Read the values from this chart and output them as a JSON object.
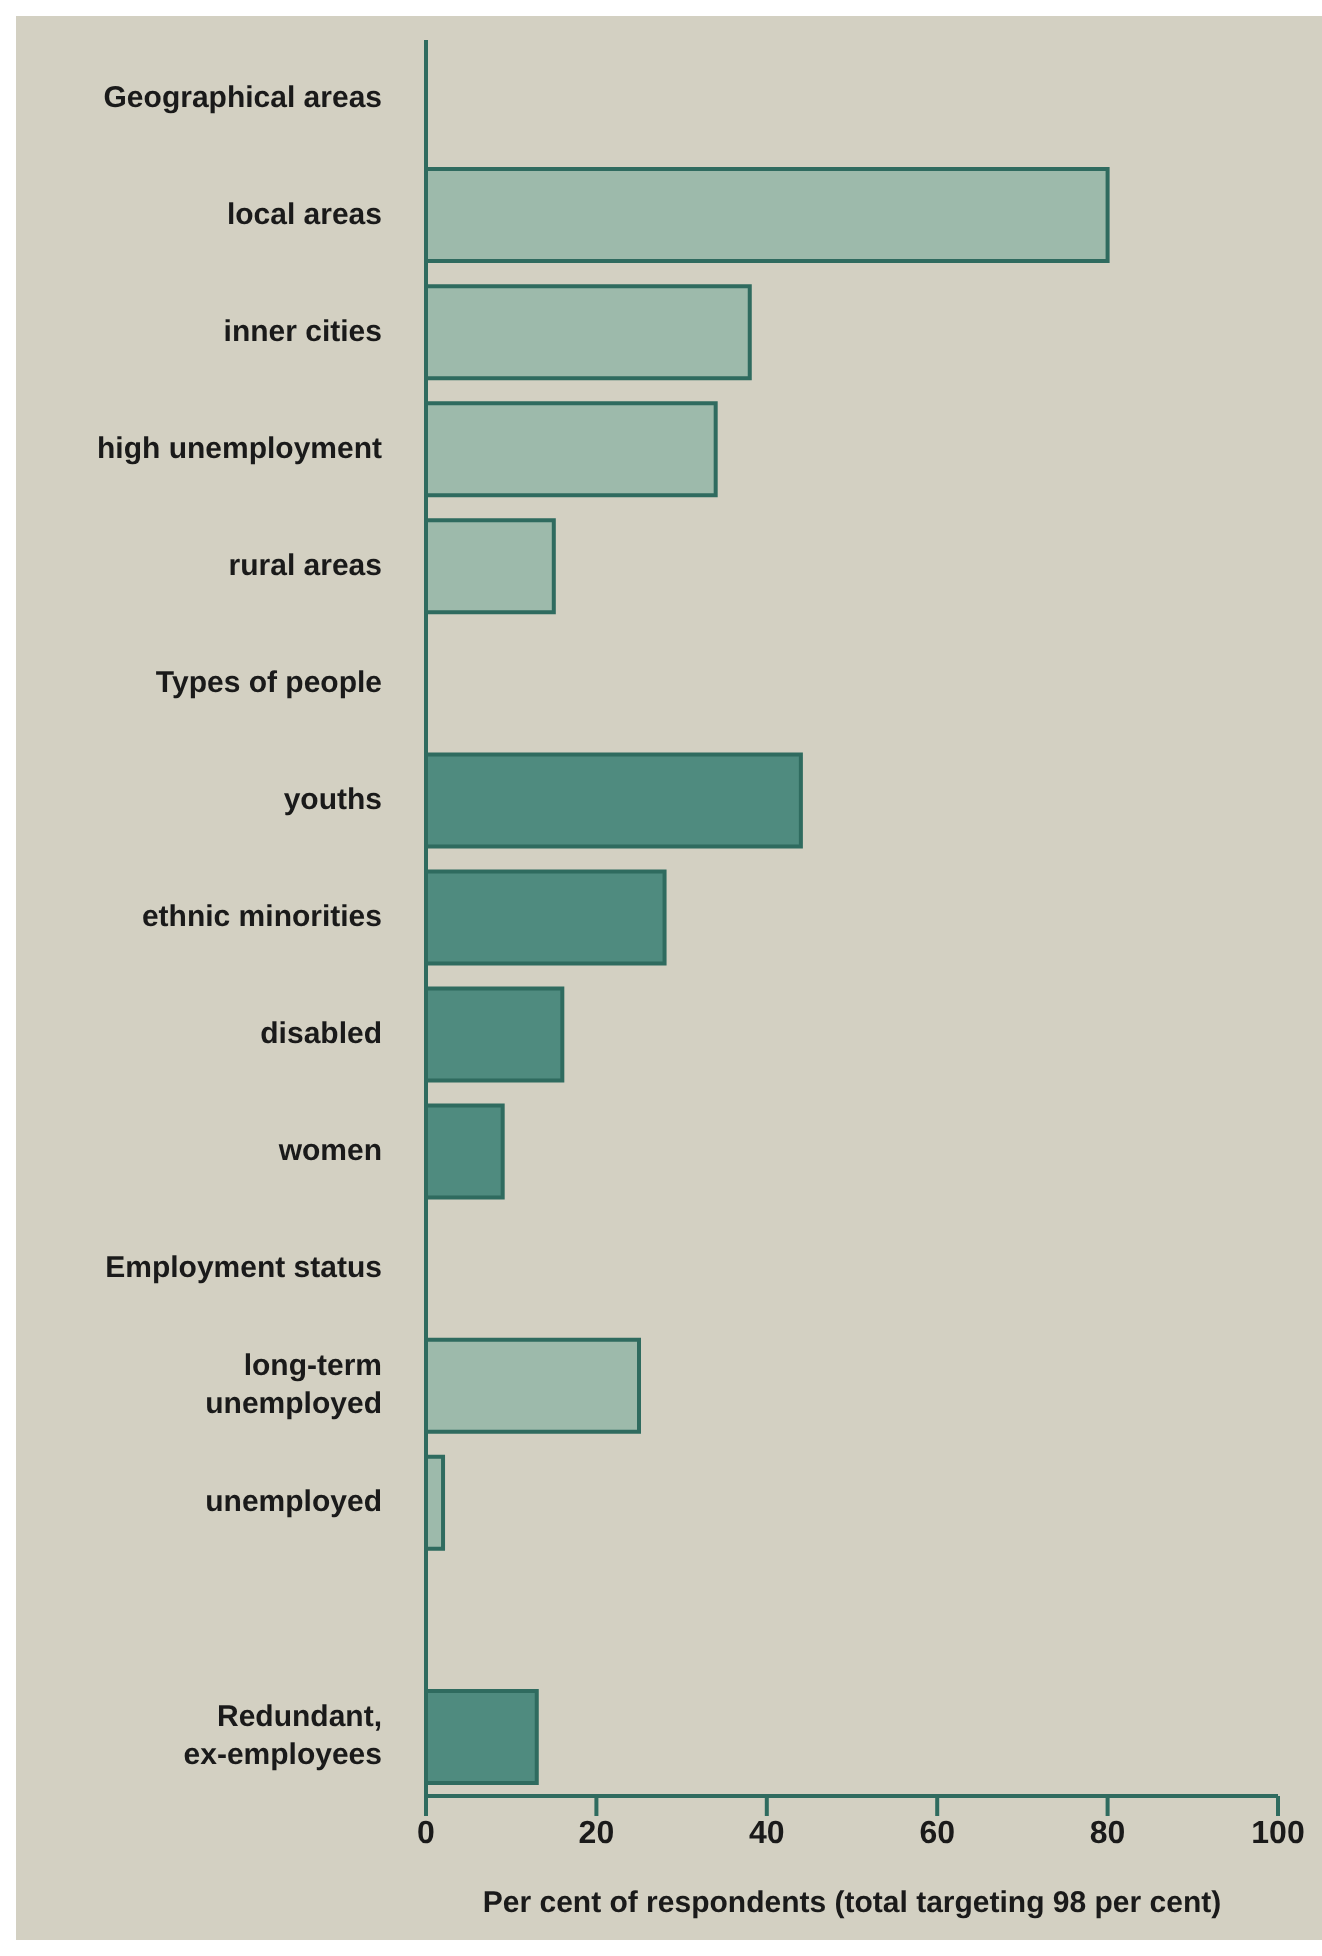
{
  "chart_data": {
    "type": "bar",
    "orientation": "horizontal",
    "xlabel": "Per cent of respondents (total targeting 98 per cent)",
    "categories": [
      "Geographical areas",
      "local areas",
      "inner cities",
      "high unemployment",
      "rural areas",
      "Types of people",
      "youths",
      "ethnic minorities",
      "disabled",
      "women",
      "Employment status",
      "long-term\nunemployed",
      "unemployed",
      null,
      "Redundant,\nex-employees"
    ],
    "values": [
      null,
      80,
      38,
      34,
      15,
      null,
      44,
      28,
      16,
      9,
      null,
      25,
      2,
      null,
      13
    ],
    "colors": [
      null,
      "#9dbaab",
      "#9dbaab",
      "#9dbaab",
      "#9dbaab",
      null,
      "#4f8b7f",
      "#4f8b7f",
      "#4f8b7f",
      "#4f8b7f",
      null,
      "#9dbaab",
      "#9dbaab",
      null,
      "#4f8b7f"
    ],
    "xlim": [
      0,
      100
    ],
    "xticks": [
      0,
      20,
      40,
      60,
      80,
      100
    ],
    "grid": false,
    "legend": false
  }
}
